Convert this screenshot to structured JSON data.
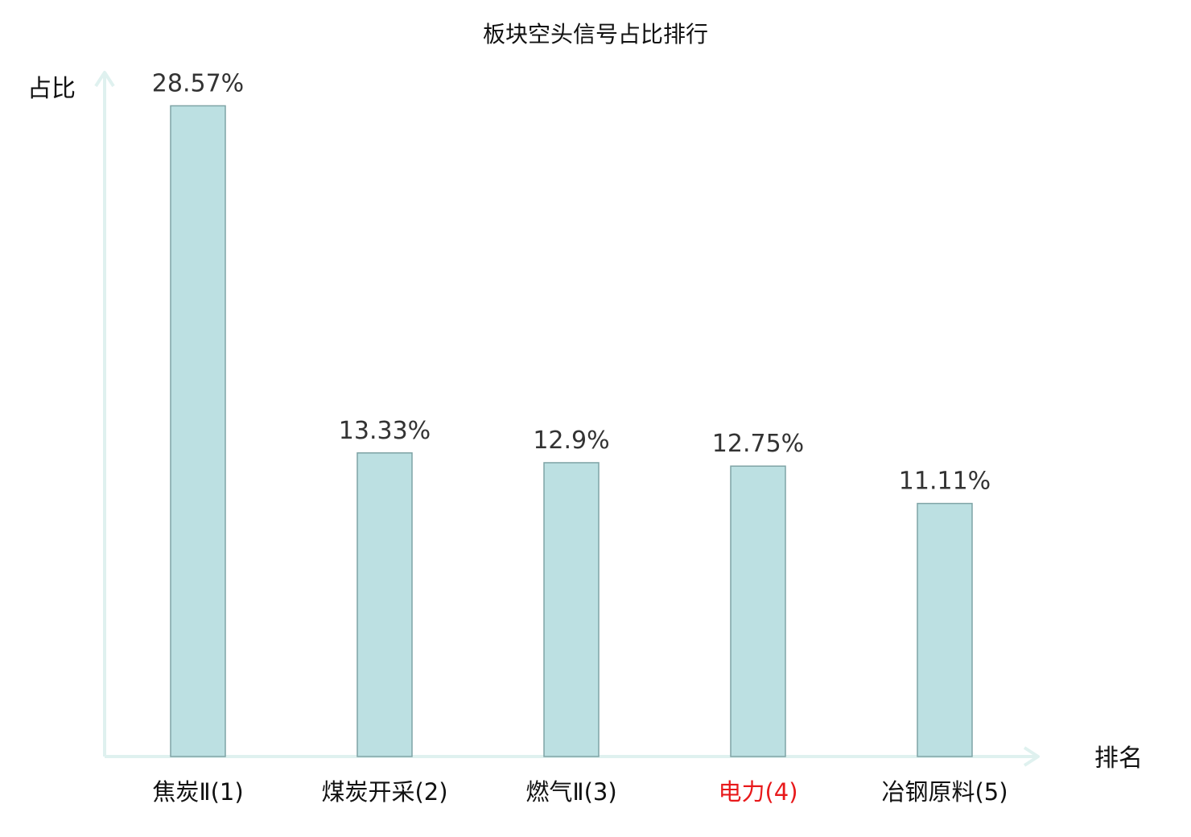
{
  "chart_data": {
    "type": "bar",
    "title": "板块空头信号占比排行",
    "xlabel": "排名",
    "ylabel": "占比",
    "categories": [
      "焦炭Ⅱ(1)",
      "煤炭开采(2)",
      "燃气Ⅱ(3)",
      "电力(4)",
      "冶钢原料(5)"
    ],
    "values": [
      28.57,
      13.33,
      12.9,
      12.75,
      11.11
    ],
    "value_labels": [
      "28.57%",
      "13.33%",
      "12.9%",
      "12.75%",
      "11.11%"
    ],
    "highlight_index": 3,
    "ylim": [
      0,
      30
    ],
    "grid": false,
    "legend": "none"
  },
  "colors": {
    "bar_fill": "#bce0e2",
    "bar_stroke": "#7fa4a6",
    "axis": "#dff1ef",
    "text": "#111111",
    "value_text": "#333333",
    "highlight": "#e8191b"
  }
}
